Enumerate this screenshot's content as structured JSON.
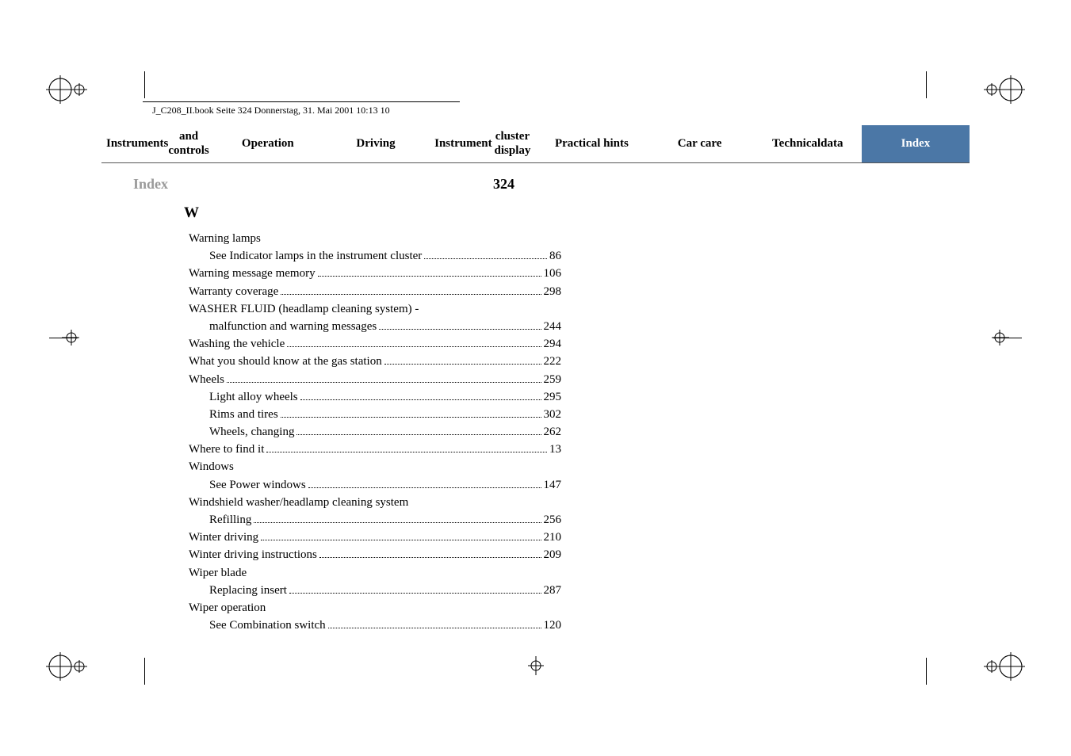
{
  "book_header": "J_C208_II.book  Seite 324  Donnerstag, 31. Mai 2001  10:13 10",
  "nav": {
    "tabs": [
      {
        "line1": "Instruments",
        "line2": "and controls"
      },
      {
        "line1": "Operation",
        "line2": ""
      },
      {
        "line1": "Driving",
        "line2": ""
      },
      {
        "line1": "Instrument",
        "line2": "cluster display"
      },
      {
        "line1": "Practical hints",
        "line2": ""
      },
      {
        "line1": "Car care",
        "line2": ""
      },
      {
        "line1": "Technical",
        "line2": "data"
      },
      {
        "line1": "Index",
        "line2": ""
      }
    ],
    "active_index": 7
  },
  "section_label": "Index",
  "page_number": "324",
  "letter": "W",
  "entries": [
    {
      "text": "Warning lamps",
      "page": "",
      "sub": false,
      "no_page": true
    },
    {
      "text": "See Indicator lamps in the instrument cluster",
      "page": "86",
      "sub": true
    },
    {
      "text": "Warning message memory",
      "page": "106",
      "sub": false
    },
    {
      "text": "Warranty coverage",
      "page": "298",
      "sub": false
    },
    {
      "text": "WASHER FLUID (headlamp cleaning system) -",
      "page": "",
      "sub": false,
      "no_page": true
    },
    {
      "text": "malfunction and warning messages",
      "page": "244",
      "sub": true,
      "continuation": true
    },
    {
      "text": "Washing the vehicle",
      "page": "294",
      "sub": false
    },
    {
      "text": "What you should know at the gas station",
      "page": "222",
      "sub": false
    },
    {
      "text": "Wheels",
      "page": "259",
      "sub": false
    },
    {
      "text": "Light alloy wheels",
      "page": "295",
      "sub": true
    },
    {
      "text": "Rims and tires",
      "page": "302",
      "sub": true
    },
    {
      "text": "Wheels, changing",
      "page": "262",
      "sub": true
    },
    {
      "text": "Where to find it",
      "page": "13",
      "sub": false
    },
    {
      "text": "Windows",
      "page": "",
      "sub": false,
      "no_page": true
    },
    {
      "text": "See Power windows",
      "page": "147",
      "sub": true
    },
    {
      "text": "Windshield washer/headlamp cleaning system",
      "page": "",
      "sub": false,
      "no_page": true
    },
    {
      "text": "Refilling",
      "page": "256",
      "sub": true
    },
    {
      "text": "Winter driving",
      "page": "210",
      "sub": false
    },
    {
      "text": "Winter driving instructions",
      "page": "209",
      "sub": false
    },
    {
      "text": "Wiper blade",
      "page": "",
      "sub": false,
      "no_page": true
    },
    {
      "text": "Replacing insert",
      "page": "287",
      "sub": true
    },
    {
      "text": "Wiper operation",
      "page": "",
      "sub": false,
      "no_page": true
    },
    {
      "text": "See Combination switch",
      "page": "120",
      "sub": true
    }
  ],
  "colors": {
    "active_tab_bg": "#4b77a6",
    "active_tab_fg": "#ffffff",
    "section_label": "#9a9a9a",
    "text": "#000000",
    "background": "#ffffff"
  }
}
